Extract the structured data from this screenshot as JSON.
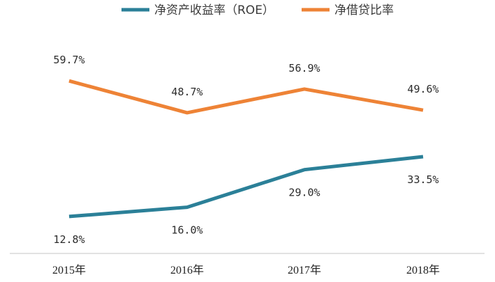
{
  "chart_data": {
    "type": "line",
    "title": "",
    "xlabel": "",
    "ylabel": "",
    "ylim": [
      0,
      80
    ],
    "grid": false,
    "legend_position": "top-center",
    "categories": [
      "2015年",
      "2016年",
      "2017年",
      "2018年"
    ],
    "series": [
      {
        "name": "净资产收益率（ROE）",
        "color": "#2b8098",
        "values": [
          12.8,
          16.0,
          29.0,
          33.5
        ],
        "labels": [
          "12.8%",
          "16.0%",
          "29.0%",
          "33.5%"
        ],
        "label_placement": [
          "below",
          "below",
          "below",
          "below"
        ]
      },
      {
        "name": "净借贷比率",
        "color": "#ee8336",
        "values": [
          59.7,
          48.7,
          56.9,
          49.6
        ],
        "labels": [
          "59.7%",
          "48.7%",
          "56.9%",
          "49.6%"
        ],
        "label_placement": [
          "above",
          "above",
          "above",
          "above"
        ]
      }
    ]
  },
  "colors": {
    "axis": "#d9d9d9"
  }
}
